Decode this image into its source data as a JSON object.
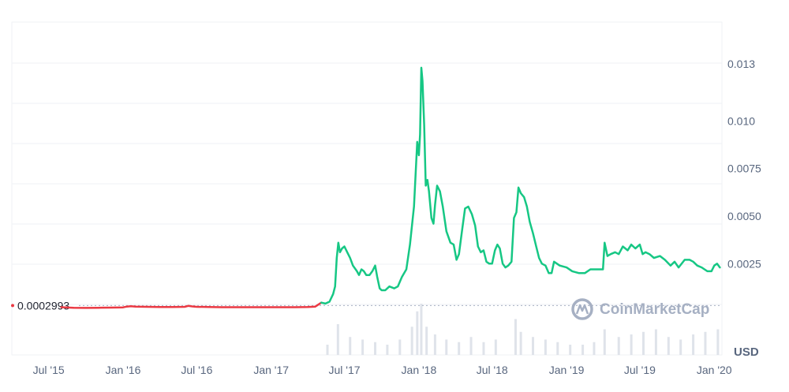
{
  "chart_data": {
    "type": "line",
    "x_ticks": [
      "Jul '15",
      "Jan '16",
      "Jul '16",
      "Jan '17",
      "Jul '17",
      "Jan '18",
      "Jul '18",
      "Jan '19",
      "Jul '19",
      "Jan '20"
    ],
    "y_ticks": [
      "0.0025",
      "0.0050",
      "0.0075",
      "0.010",
      "0.013"
    ],
    "ylim": [
      -0.0023,
      0.0152
    ],
    "xlim": [
      "2015-04-01",
      "2020-01-20"
    ],
    "reference_price": "0.0002993",
    "currency": "USD",
    "watermark": "CoinMarketCap",
    "grid": true,
    "colors": {
      "up": "#16c784",
      "down": "#ea3943",
      "volume": "#dfe3ea",
      "reference": "#a6b0c3"
    },
    "series": [
      {
        "values": [
          [
            "2015-08-01",
            0.00021
          ],
          [
            "2015-09-01",
            0.00018
          ],
          [
            "2015-10-01",
            0.00017
          ],
          [
            "2015-11-01",
            0.00018
          ],
          [
            "2015-12-01",
            0.00019
          ],
          [
            "2016-01-01",
            0.0002
          ],
          [
            "2016-01-10",
            0.00024
          ],
          [
            "2016-01-20",
            0.00026
          ],
          [
            "2016-02-01",
            0.00024
          ],
          [
            "2016-03-01",
            0.00023
          ],
          [
            "2016-04-01",
            0.00022
          ],
          [
            "2016-05-01",
            0.00022
          ],
          [
            "2016-06-01",
            0.00023
          ],
          [
            "2016-06-10",
            0.00028
          ],
          [
            "2016-06-20",
            0.00025
          ],
          [
            "2016-07-01",
            0.00023
          ],
          [
            "2016-08-01",
            0.00022
          ],
          [
            "2016-09-01",
            0.00021
          ],
          [
            "2016-10-01",
            0.00021
          ],
          [
            "2016-11-01",
            0.00021
          ],
          [
            "2016-12-01",
            0.00021
          ],
          [
            "2017-01-01",
            0.00021
          ],
          [
            "2017-02-01",
            0.00021
          ],
          [
            "2017-03-01",
            0.00021
          ],
          [
            "2017-04-01",
            0.00022
          ],
          [
            "2017-04-20",
            0.00024
          ],
          [
            "2017-05-05",
            0.00045
          ],
          [
            "2017-05-15",
            0.0004
          ],
          [
            "2017-05-25",
            0.0005
          ],
          [
            "2017-06-03",
            0.0009
          ],
          [
            "2017-06-08",
            0.0013
          ],
          [
            "2017-06-12",
            0.0028
          ],
          [
            "2017-06-16",
            0.0036
          ],
          [
            "2017-06-20",
            0.0031
          ],
          [
            "2017-06-25",
            0.0033
          ],
          [
            "2017-07-01",
            0.0034
          ],
          [
            "2017-07-08",
            0.0031
          ],
          [
            "2017-07-15",
            0.0028
          ],
          [
            "2017-07-22",
            0.0024
          ],
          [
            "2017-08-01",
            0.0021
          ],
          [
            "2017-08-06",
            0.0019
          ],
          [
            "2017-08-12",
            0.0022
          ],
          [
            "2017-08-18",
            0.0021
          ],
          [
            "2017-08-24",
            0.0019
          ],
          [
            "2017-09-01",
            0.0019
          ],
          [
            "2017-09-08",
            0.0021
          ],
          [
            "2017-09-15",
            0.0024
          ],
          [
            "2017-09-20",
            0.0018
          ],
          [
            "2017-09-26",
            0.0012
          ],
          [
            "2017-10-01",
            0.0011
          ],
          [
            "2017-10-10",
            0.0011
          ],
          [
            "2017-10-20",
            0.0013
          ],
          [
            "2017-11-01",
            0.0012
          ],
          [
            "2017-11-10",
            0.0013
          ],
          [
            "2017-11-20",
            0.0018
          ],
          [
            "2017-12-01",
            0.0022
          ],
          [
            "2017-12-10",
            0.0035
          ],
          [
            "2017-12-20",
            0.0055
          ],
          [
            "2017-12-28",
            0.0089
          ],
          [
            "2018-01-01",
            0.0082
          ],
          [
            "2018-01-04",
            0.0093
          ],
          [
            "2018-01-07",
            0.0128
          ],
          [
            "2018-01-10",
            0.0121
          ],
          [
            "2018-01-14",
            0.0098
          ],
          [
            "2018-01-18",
            0.0066
          ],
          [
            "2018-01-22",
            0.0069
          ],
          [
            "2018-01-26",
            0.0063
          ],
          [
            "2018-02-01",
            0.0049
          ],
          [
            "2018-02-06",
            0.0046
          ],
          [
            "2018-02-10",
            0.0056
          ],
          [
            "2018-02-15",
            0.0066
          ],
          [
            "2018-02-22",
            0.0063
          ],
          [
            "2018-03-01",
            0.0055
          ],
          [
            "2018-03-10",
            0.0042
          ],
          [
            "2018-03-20",
            0.0036
          ],
          [
            "2018-03-28",
            0.0035
          ],
          [
            "2018-04-04",
            0.0027
          ],
          [
            "2018-04-10",
            0.003
          ],
          [
            "2018-04-18",
            0.0043
          ],
          [
            "2018-04-25",
            0.0054
          ],
          [
            "2018-05-03",
            0.0055
          ],
          [
            "2018-05-12",
            0.0051
          ],
          [
            "2018-05-20",
            0.0045
          ],
          [
            "2018-05-27",
            0.0034
          ],
          [
            "2018-06-03",
            0.0031
          ],
          [
            "2018-06-10",
            0.0032
          ],
          [
            "2018-06-17",
            0.0026
          ],
          [
            "2018-06-24",
            0.0025
          ],
          [
            "2018-07-01",
            0.0025
          ],
          [
            "2018-07-08",
            0.0032
          ],
          [
            "2018-07-14",
            0.0035
          ],
          [
            "2018-07-20",
            0.0033
          ],
          [
            "2018-07-27",
            0.0025
          ],
          [
            "2018-08-03",
            0.0023
          ],
          [
            "2018-08-10",
            0.0024
          ],
          [
            "2018-08-18",
            0.0026
          ],
          [
            "2018-08-24",
            0.0049
          ],
          [
            "2018-08-30",
            0.0052
          ],
          [
            "2018-09-04",
            0.0065
          ],
          [
            "2018-09-10",
            0.0062
          ],
          [
            "2018-09-18",
            0.006
          ],
          [
            "2018-09-25",
            0.0055
          ],
          [
            "2018-10-02",
            0.0047
          ],
          [
            "2018-10-10",
            0.0041
          ],
          [
            "2018-10-18",
            0.0034
          ],
          [
            "2018-10-25",
            0.0028
          ],
          [
            "2018-11-01",
            0.0025
          ],
          [
            "2018-11-10",
            0.0024
          ],
          [
            "2018-11-18",
            0.002
          ],
          [
            "2018-11-25",
            0.002
          ],
          [
            "2018-12-01",
            0.0026
          ],
          [
            "2018-12-15",
            0.0024
          ],
          [
            "2019-01-01",
            0.0023
          ],
          [
            "2019-01-15",
            0.0021
          ],
          [
            "2019-02-01",
            0.002
          ],
          [
            "2019-02-15",
            0.002
          ],
          [
            "2019-03-01",
            0.0022
          ],
          [
            "2019-03-15",
            0.0022
          ],
          [
            "2019-04-01",
            0.0022
          ],
          [
            "2019-04-05",
            0.0036
          ],
          [
            "2019-04-12",
            0.0029
          ],
          [
            "2019-04-20",
            0.003
          ],
          [
            "2019-05-01",
            0.0031
          ],
          [
            "2019-05-10",
            0.003
          ],
          [
            "2019-05-20",
            0.0034
          ],
          [
            "2019-06-01",
            0.0032
          ],
          [
            "2019-06-10",
            0.0035
          ],
          [
            "2019-06-20",
            0.0033
          ],
          [
            "2019-07-01",
            0.0035
          ],
          [
            "2019-07-08",
            0.003
          ],
          [
            "2019-07-15",
            0.0031
          ],
          [
            "2019-07-25",
            0.003
          ],
          [
            "2019-08-05",
            0.0028
          ],
          [
            "2019-08-20",
            0.0029
          ],
          [
            "2019-09-01",
            0.0027
          ],
          [
            "2019-09-15",
            0.0024
          ],
          [
            "2019-09-25",
            0.0026
          ],
          [
            "2019-10-05",
            0.0023
          ],
          [
            "2019-10-20",
            0.0027
          ],
          [
            "2019-11-01",
            0.0027
          ],
          [
            "2019-11-10",
            0.0026
          ],
          [
            "2019-11-20",
            0.0024
          ],
          [
            "2019-12-01",
            0.0023
          ],
          [
            "2019-12-15",
            0.0021
          ],
          [
            "2019-12-25",
            0.0021
          ],
          [
            "2020-01-01",
            0.0024
          ],
          [
            "2020-01-08",
            0.0025
          ],
          [
            "2020-01-15",
            0.0023
          ]
        ]
      }
    ],
    "volume": [
      [
        "2017-05-20",
        0.2
      ],
      [
        "2017-06-15",
        0.6
      ],
      [
        "2017-07-15",
        0.35
      ],
      [
        "2017-08-15",
        0.3
      ],
      [
        "2017-09-15",
        0.25
      ],
      [
        "2017-10-15",
        0.2
      ],
      [
        "2017-11-15",
        0.3
      ],
      [
        "2017-12-15",
        0.55
      ],
      [
        "2017-12-28",
        0.85
      ],
      [
        "2018-01-07",
        1.0
      ],
      [
        "2018-01-20",
        0.55
      ],
      [
        "2018-02-10",
        0.4
      ],
      [
        "2018-03-10",
        0.3
      ],
      [
        "2018-04-10",
        0.25
      ],
      [
        "2018-05-10",
        0.35
      ],
      [
        "2018-06-10",
        0.25
      ],
      [
        "2018-07-10",
        0.3
      ],
      [
        "2018-08-28",
        0.7
      ],
      [
        "2018-09-10",
        0.45
      ],
      [
        "2018-10-10",
        0.35
      ],
      [
        "2018-11-10",
        0.3
      ],
      [
        "2018-12-10",
        0.25
      ],
      [
        "2019-01-10",
        0.2
      ],
      [
        "2019-02-10",
        0.2
      ],
      [
        "2019-03-10",
        0.25
      ],
      [
        "2019-04-05",
        0.5
      ],
      [
        "2019-05-10",
        0.35
      ],
      [
        "2019-06-10",
        0.4
      ],
      [
        "2019-07-10",
        0.45
      ],
      [
        "2019-08-10",
        0.5
      ],
      [
        "2019-09-10",
        0.35
      ],
      [
        "2019-10-10",
        0.3
      ],
      [
        "2019-11-10",
        0.4
      ],
      [
        "2019-12-10",
        0.45
      ],
      [
        "2020-01-10",
        0.5
      ]
    ]
  }
}
